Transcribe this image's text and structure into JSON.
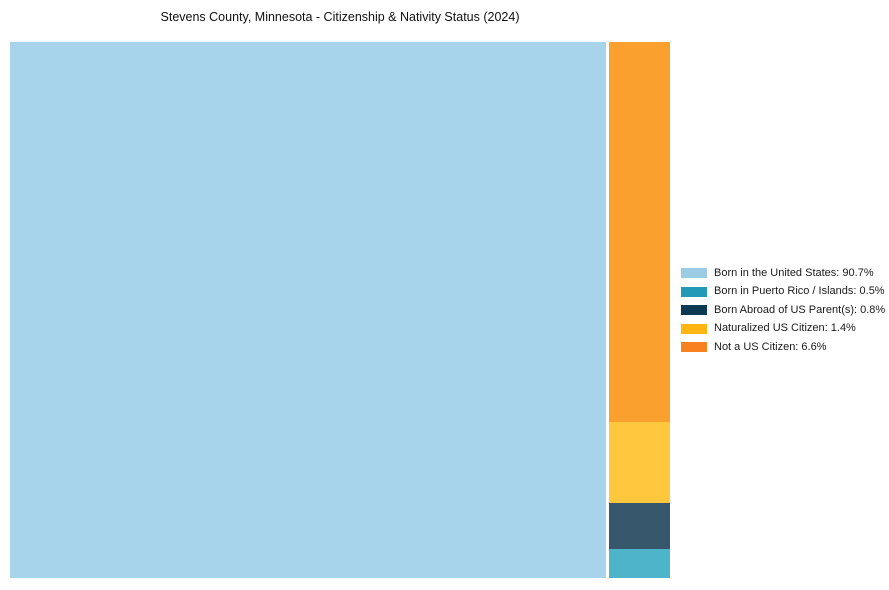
{
  "chart_data": {
    "type": "treemap",
    "title": "Stevens County, Minnesota - Citizenship & Nativity Status (2024)",
    "unit": "%",
    "legend_position": "right",
    "background_color": "#ffffff",
    "series": [
      {
        "label": "Born in the United States",
        "value": 90.7,
        "legend_label": "Born in the United States: 90.7%",
        "color": "#a7d4ea",
        "legend_color": "#9ccbe3"
      },
      {
        "label": "Born in Puerto Rico / Islands",
        "value": 0.5,
        "legend_label": "Born in Puerto Rico / Islands: 0.5%",
        "color": "#4db4c9",
        "legend_color": "#2399b8"
      },
      {
        "label": "Born Abroad of US Parent(s)",
        "value": 0.8,
        "legend_label": "Born Abroad of US Parent(s): 0.8%",
        "color": "#36576c",
        "legend_color": "#0d3a53"
      },
      {
        "label": "Naturalized US Citizen",
        "value": 1.4,
        "legend_label": "Naturalized US Citizen: 1.4%",
        "color": "#fec73e",
        "legend_color": "#ffb613"
      },
      {
        "label": "Not a US Citizen",
        "value": 6.6,
        "legend_label": "Not a US Citizen: 6.6%",
        "color": "#f9a02f",
        "legend_color": "#f8821f"
      }
    ]
  }
}
